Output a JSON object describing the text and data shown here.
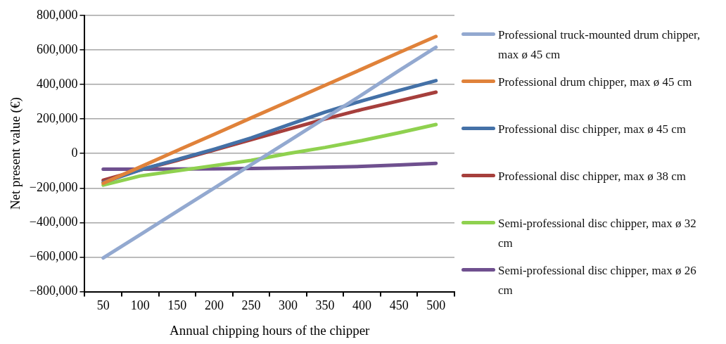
{
  "chart_data": {
    "type": "line",
    "xlabel": "Annual chipping hours of the chipper",
    "ylabel": "Net present value (€)",
    "categories": [
      "50",
      "100",
      "150",
      "200",
      "250",
      "300",
      "350",
      "400",
      "450",
      "500"
    ],
    "ylim": [
      -800000,
      800000
    ],
    "yticks": [
      {
        "value": -800000,
        "label": "−800,000"
      },
      {
        "value": -600000,
        "label": "−600,000"
      },
      {
        "value": -400000,
        "label": "−400,000"
      },
      {
        "value": -200000,
        "label": "−200,000"
      },
      {
        "value": 0,
        "label": "0"
      },
      {
        "value": 200000,
        "label": "200,000"
      },
      {
        "value": 400000,
        "label": "400,000"
      },
      {
        "value": 600000,
        "label": "600,000"
      },
      {
        "value": 800000,
        "label": "800,000"
      }
    ],
    "grid": "y",
    "legend": "right",
    "marker": "none",
    "series": [
      {
        "name": "Professional truck-mounted drum chipper, max ø  45 cm",
        "color": "#93a9d0",
        "values": [
          -605000,
          -470000,
          -335000,
          -200000,
          -65000,
          70000,
          205000,
          340000,
          480000,
          615000
        ]
      },
      {
        "name": "Professional drum chipper, max ø  45 cm",
        "color": "#e0823a",
        "values": [
          -172000,
          -78000,
          17000,
          111000,
          206000,
          300000,
          395000,
          489000,
          584000,
          678000
        ]
      },
      {
        "name": "Professional disc chipper, max ø  45 cm",
        "color": "#4471a7",
        "values": [
          -168000,
          -95000,
          -35000,
          25000,
          90000,
          165000,
          240000,
          305000,
          365000,
          422000
        ]
      },
      {
        "name": "Professional disc chipper, max ø  38 cm",
        "color": "#a63f3c",
        "values": [
          -155000,
          -95000,
          -40000,
          20000,
          80000,
          140000,
          200000,
          255000,
          305000,
          355000
        ]
      },
      {
        "name": "Semi-professional disc chipper, max ø  32 cm",
        "color": "#8fd14f",
        "values": [
          -183000,
          -130000,
          -100000,
          -70000,
          -40000,
          0,
          35000,
          75000,
          120000,
          168000
        ]
      },
      {
        "name": "Semi-professional disc chipper, max ø 26 cm",
        "color": "#6f508f",
        "values": [
          -91000,
          -91000,
          -90000,
          -89000,
          -87000,
          -84000,
          -80000,
          -75000,
          -66000,
          -57000
        ]
      }
    ]
  }
}
